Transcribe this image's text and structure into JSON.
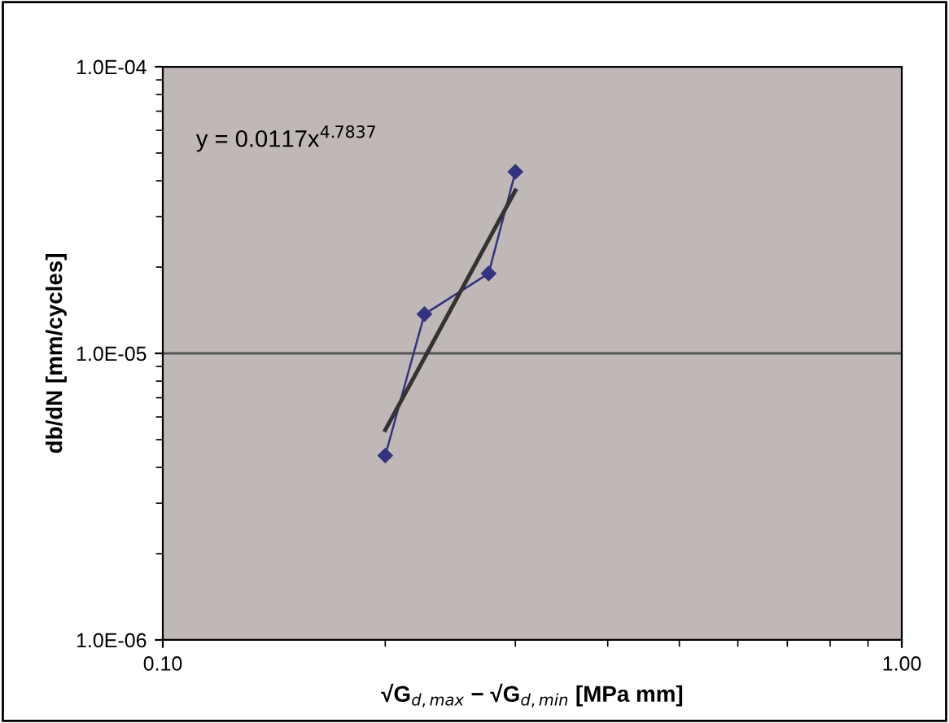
{
  "chart_data": {
    "type": "line",
    "xlabel": "√G$_{d,max}$ − √G$_{d,min}$ [MPa mm]",
    "ylabel": "db/dN [mm/cycles]",
    "annotations": [
      "y = 0.0117x$^{4.7837}$"
    ],
    "log": "xy",
    "grid": "y",
    "legend": false,
    "xlim": [
      0.1,
      1.0
    ],
    "xticks": [
      {
        "value": 0.1,
        "label": "0.10"
      },
      {
        "value": 1.0,
        "label": "1.00"
      }
    ],
    "ylim": [
      1e-06,
      0.0001
    ],
    "yticks": [
      {
        "value": 1e-06,
        "label": "1.0E-06"
      },
      {
        "value": 1e-05,
        "label": "1.0E-05"
      },
      {
        "value": 0.0001,
        "label": "1.0E-04"
      }
    ],
    "series": [
      {
        "color": "#333380",
        "marker": "diamond",
        "x": [
          0.2,
          0.226,
          0.276,
          0.3
        ],
        "values": [
          4.4e-06,
          1.37e-05,
          1.9e-05,
          4.3e-05
        ]
      },
      {
        "color": "#333333",
        "marker": "none",
        "x": [
          0.2,
          0.3
        ],
        "values": [
          5.4e-06,
          3.7e-05
        ]
      }
    ]
  }
}
